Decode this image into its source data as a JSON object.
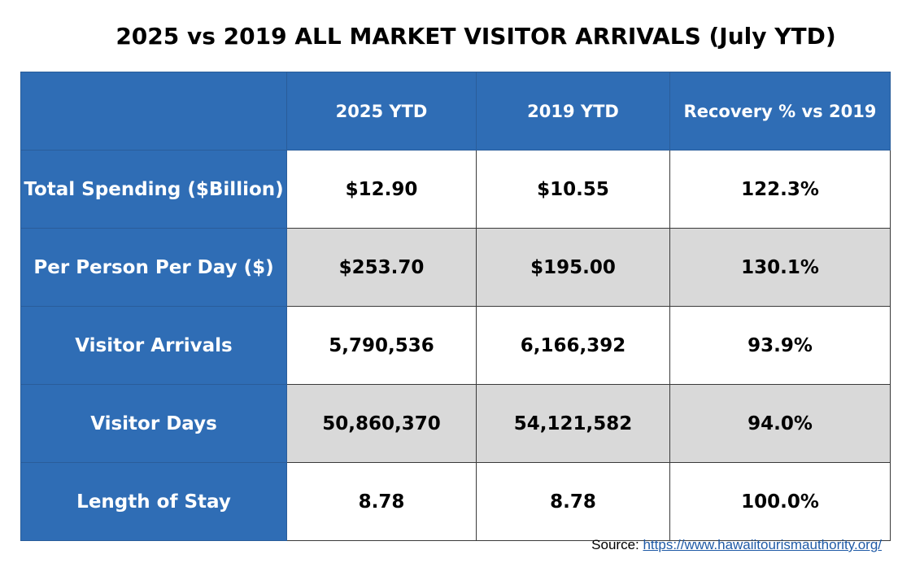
{
  "title": "2025 vs 2019 ALL MARKET VISITOR ARRIVALS (July YTD)",
  "chart_data": {
    "type": "table",
    "title": "2025 vs 2019 ALL MARKET VISITOR ARRIVALS (July YTD)",
    "columns": [
      "",
      "2025 YTD",
      "2019 YTD",
      "Recovery % vs 2019"
    ],
    "rows": [
      {
        "label": "Total Spending ($Billion)",
        "values": [
          "$12.90",
          "$10.55",
          "122.3%"
        ]
      },
      {
        "label": "Per Person Per Day ($)",
        "values": [
          "$253.70",
          "$195.00",
          "130.1%"
        ]
      },
      {
        "label": "Visitor Arrivals",
        "values": [
          "5,790,536",
          "6,166,392",
          "93.9%"
        ]
      },
      {
        "label": "Visitor Days",
        "values": [
          "50,860,370",
          "54,121,582",
          "94.0%"
        ]
      },
      {
        "label": "Length of Stay",
        "values": [
          "8.78",
          "8.78",
          "100.0%"
        ]
      }
    ]
  },
  "colors": {
    "header_bg": "#2f6db5",
    "row_alt_bg": "#d9d9d9",
    "link": "#1f5aa6"
  },
  "source": {
    "prefix": "Source: ",
    "link_text": "https://www.hawaiitourismauthority.org/"
  }
}
